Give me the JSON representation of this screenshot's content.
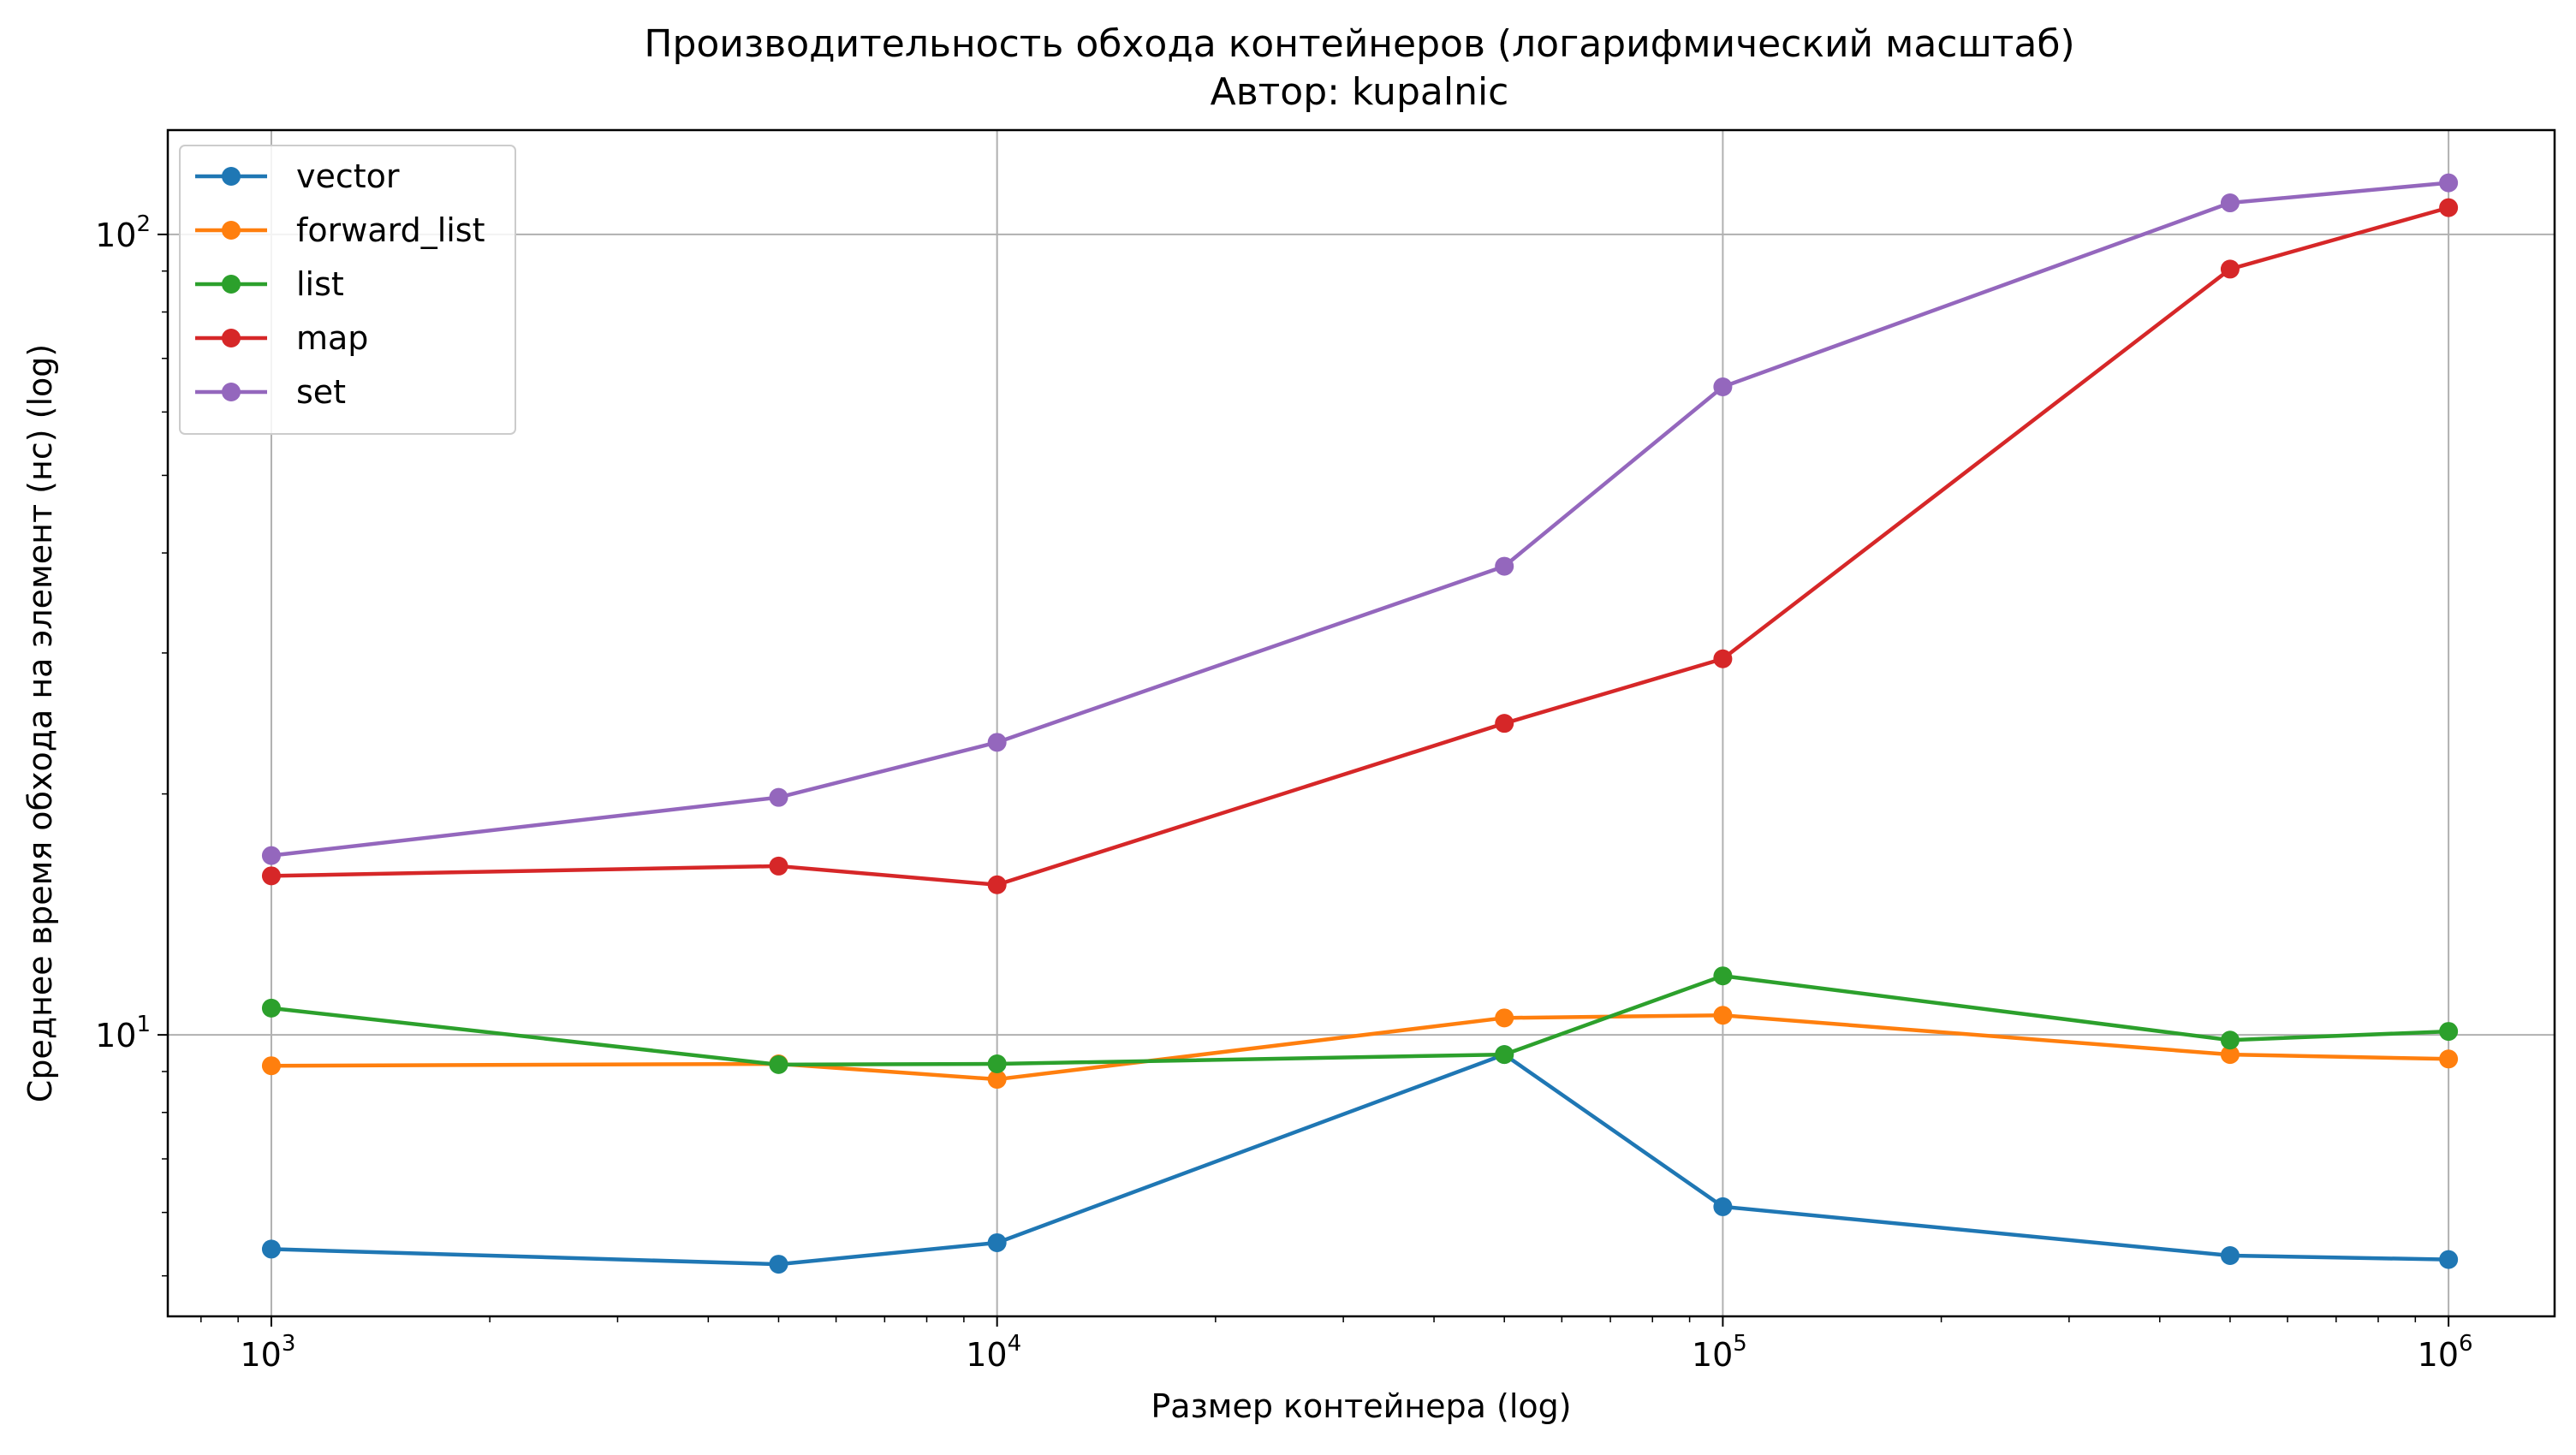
{
  "chart_data": {
    "type": "line",
    "title": "Производительность обхода контейнеров (логарифмический масштаб)",
    "subtitle": "Автор: kupalnic",
    "xlabel": "Размер контейнера (log)",
    "ylabel": "Среднее время обхода на элемент (нс) (log)",
    "xscale": "log",
    "yscale": "log",
    "xlim": [
      720,
      1400000
    ],
    "ylim": [
      4.45,
      135
    ],
    "grid": true,
    "legend_position": "top-left",
    "x": [
      1000,
      5000,
      10000,
      50000,
      100000,
      500000,
      1000000
    ],
    "x_ticks": [
      {
        "value": 1000,
        "base": "10",
        "exp": "3"
      },
      {
        "value": 10000,
        "base": "10",
        "exp": "4"
      },
      {
        "value": 100000,
        "base": "10",
        "exp": "5"
      },
      {
        "value": 1000000,
        "base": "10",
        "exp": "6"
      }
    ],
    "y_ticks": [
      {
        "value": 10,
        "base": "10",
        "exp": "1"
      },
      {
        "value": 100,
        "base": "10",
        "exp": "2"
      }
    ],
    "series": [
      {
        "name": "vector",
        "color": "#1f77b4",
        "values": [
          5.4,
          5.17,
          5.5,
          9.45,
          6.1,
          5.3,
          5.24
        ]
      },
      {
        "name": "forward_list",
        "color": "#ff7f0e",
        "values": [
          9.15,
          9.2,
          8.8,
          10.5,
          10.58,
          9.45,
          9.33
        ]
      },
      {
        "name": "list",
        "color": "#2ca02c",
        "values": [
          10.8,
          9.18,
          9.2,
          9.45,
          11.85,
          9.85,
          10.1
        ]
      },
      {
        "name": "map",
        "color": "#d62728",
        "values": [
          15.8,
          16.25,
          15.4,
          24.5,
          29.5,
          90.5,
          108
        ]
      },
      {
        "name": "set",
        "color": "#9467bd",
        "values": [
          16.75,
          19.8,
          23.2,
          38.5,
          64.5,
          109.5,
          116
        ]
      }
    ]
  }
}
